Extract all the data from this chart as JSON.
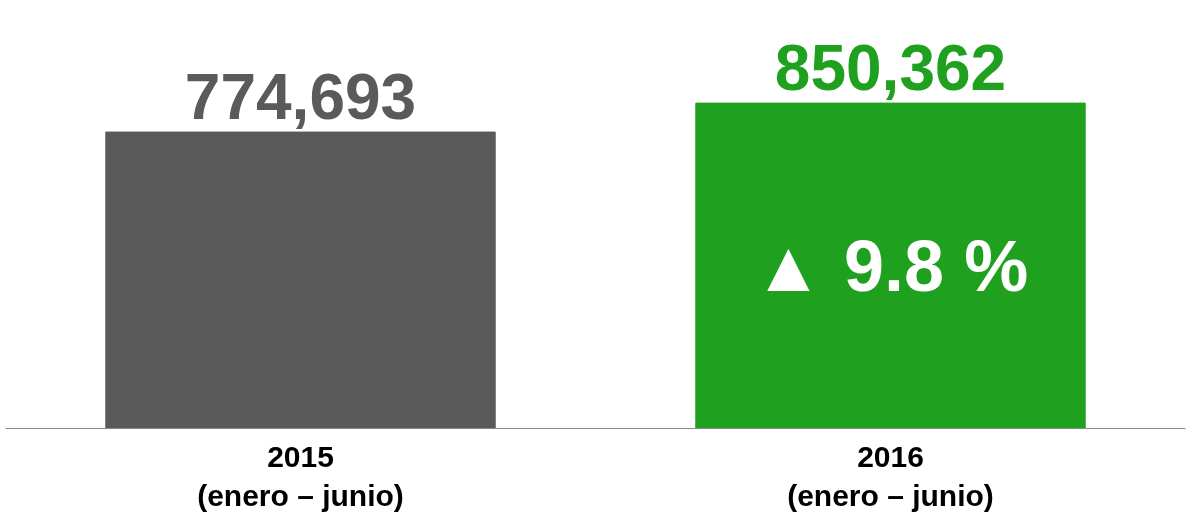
{
  "chart_data": {
    "type": "bar",
    "categories": [
      "2015\n(enero – junio)",
      "2016\n(enero – junio)"
    ],
    "values": [
      774693,
      850362
    ],
    "colors": [
      "#5a5a5a",
      "#1fa01f"
    ],
    "value_labels": [
      "774,693",
      "850,362"
    ],
    "annotations": [
      "▲ 9.8 %"
    ],
    "tick_labels": "x"
  }
}
